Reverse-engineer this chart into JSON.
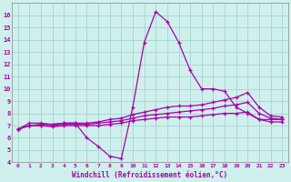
{
  "background_color": "#cff0ec",
  "grid_color": "#aad8d4",
  "line_color": "#aa00aa",
  "xlabel": "Windchill (Refroidissement éolien,°C)",
  "xlim": [
    -0.5,
    23.5
  ],
  "ylim": [
    4,
    17
  ],
  "xticks": [
    0,
    1,
    2,
    3,
    4,
    5,
    6,
    7,
    8,
    9,
    10,
    11,
    12,
    13,
    14,
    15,
    16,
    17,
    18,
    19,
    20,
    21,
    22,
    23
  ],
  "yticks": [
    4,
    5,
    6,
    7,
    8,
    9,
    10,
    11,
    12,
    13,
    14,
    15,
    16
  ],
  "series": [
    {
      "x": [
        0,
        1,
        2,
        3,
        4,
        5,
        6,
        7,
        8,
        9,
        10,
        11,
        12,
        13,
        14,
        15,
        16,
        17,
        18,
        19,
        20,
        21,
        22,
        23
      ],
      "y": [
        6.7,
        7.2,
        7.2,
        7.1,
        7.2,
        7.2,
        6.0,
        5.3,
        4.5,
        4.3,
        8.5,
        13.8,
        16.3,
        15.5,
        13.8,
        11.5,
        10.0,
        10.0,
        9.8,
        8.5,
        8.0,
        7.5,
        7.5,
        7.5
      ]
    },
    {
      "x": [
        0,
        1,
        2,
        3,
        4,
        5,
        6,
        7,
        8,
        9,
        10,
        11,
        12,
        13,
        14,
        15,
        16,
        17,
        18,
        19,
        20,
        21,
        22,
        23
      ],
      "y": [
        6.7,
        7.0,
        7.1,
        7.1,
        7.2,
        7.2,
        7.2,
        7.3,
        7.5,
        7.6,
        7.9,
        8.1,
        8.3,
        8.5,
        8.6,
        8.6,
        8.7,
        8.9,
        9.1,
        9.3,
        9.7,
        8.5,
        7.8,
        7.7
      ]
    },
    {
      "x": [
        0,
        1,
        2,
        3,
        4,
        5,
        6,
        7,
        8,
        9,
        10,
        11,
        12,
        13,
        14,
        15,
        16,
        17,
        18,
        19,
        20,
        21,
        22,
        23
      ],
      "y": [
        6.7,
        7.0,
        7.0,
        7.0,
        7.1,
        7.1,
        7.1,
        7.2,
        7.3,
        7.4,
        7.6,
        7.8,
        7.9,
        8.0,
        8.1,
        8.2,
        8.3,
        8.4,
        8.6,
        8.7,
        8.9,
        8.0,
        7.6,
        7.5
      ]
    },
    {
      "x": [
        0,
        1,
        2,
        3,
        4,
        5,
        6,
        7,
        8,
        9,
        10,
        11,
        12,
        13,
        14,
        15,
        16,
        17,
        18,
        19,
        20,
        21,
        22,
        23
      ],
      "y": [
        6.7,
        7.0,
        7.0,
        6.9,
        7.0,
        7.0,
        7.0,
        7.0,
        7.1,
        7.2,
        7.4,
        7.5,
        7.6,
        7.7,
        7.7,
        7.7,
        7.8,
        7.9,
        8.0,
        8.0,
        8.1,
        7.5,
        7.3,
        7.3
      ]
    }
  ]
}
